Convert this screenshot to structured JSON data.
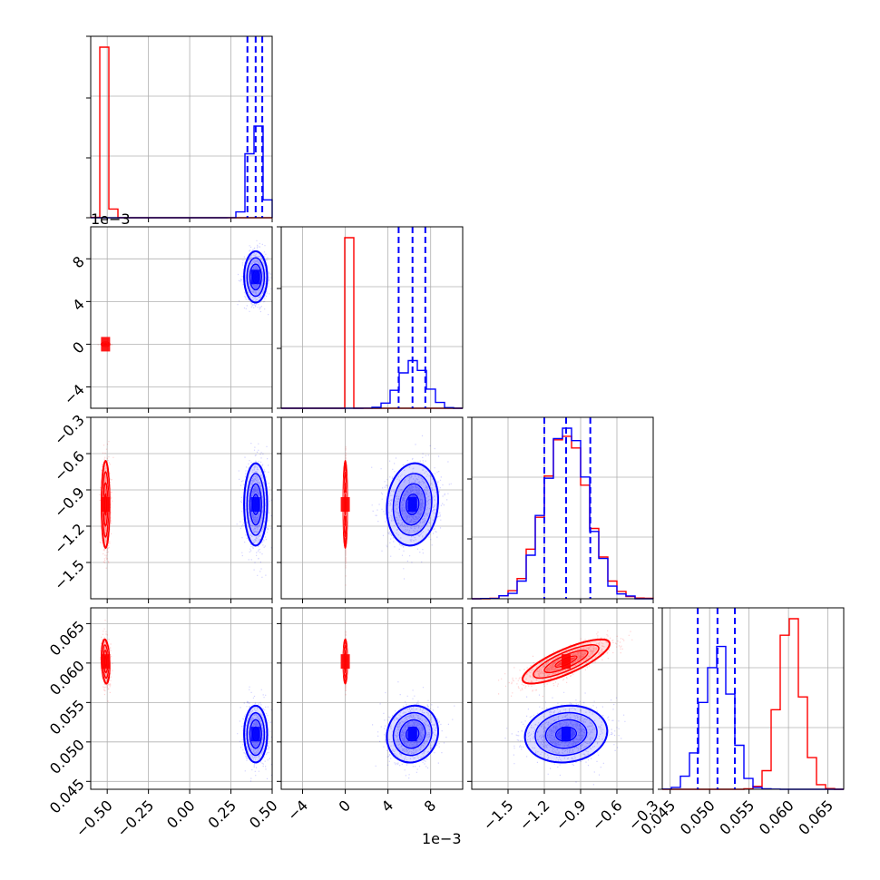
{
  "chart_data": {
    "type": "corner",
    "colors": {
      "red": "#ff0000",
      "blue": "#0000ff",
      "grid": "#b0b0b0"
    },
    "parameters": [
      {
        "range": [
          -0.6,
          0.5
        ],
        "ticks": [
          "−0.50",
          "−0.25",
          "0.00",
          "0.25",
          "0.50"
        ],
        "tick_values": [
          -0.5,
          -0.25,
          0,
          0.25,
          0.5
        ]
      },
      {
        "range": [
          -6,
          11
        ],
        "ticks": [
          "−4",
          "0",
          "4",
          "8"
        ],
        "tick_values": [
          -4,
          0,
          4,
          8
        ],
        "offset_label": "1e−3"
      },
      {
        "range": [
          -1.8,
          -0.3
        ],
        "ticks": [
          "−1.5",
          "−1.2",
          "−0.9",
          "−0.6",
          "−0.3"
        ],
        "tick_values": [
          -1.5,
          -1.2,
          -0.9,
          -0.6,
          -0.3
        ]
      },
      {
        "range": [
          0.044,
          0.067
        ],
        "ticks": [
          "0.045",
          "0.050",
          "0.055",
          "0.060",
          "0.065"
        ],
        "tick_values": [
          0.045,
          0.05,
          0.055,
          0.06,
          0.065
        ]
      }
    ],
    "top_offset_label": "1e−3",
    "series": [
      {
        "color": "red",
        "means": [
          -0.51,
          0.0,
          -1.02,
          0.0602
        ],
        "sigmas": [
          0.012,
          0.0011,
          0.18,
          0.0014
        ],
        "corr": {
          "1_2": 0.75,
          "2_3": 0.8,
          "1_3": 0.5,
          "0_3": -0.2,
          "0_1": -0.1,
          "0_2": 0.0
        }
      },
      {
        "color": "blue",
        "means": [
          0.4,
          6.3,
          -1.02,
          0.051
        ],
        "sigmas": [
          0.035,
          1.2,
          0.17,
          0.0018
        ],
        "corr": {
          "1_2": 0.1,
          "2_3": 0.1,
          "1_3": 0.1,
          "0_3": 0.0,
          "0_1": 0.0,
          "0_2": 0.0
        }
      }
    ],
    "blue_quantiles": [
      [
        0.35,
        0.4,
        0.44
      ],
      [
        5.0,
        6.3,
        7.5
      ],
      [
        -1.2,
        -1.02,
        -0.82
      ],
      [
        0.0485,
        0.051,
        0.0532
      ]
    ],
    "grid": true
  }
}
